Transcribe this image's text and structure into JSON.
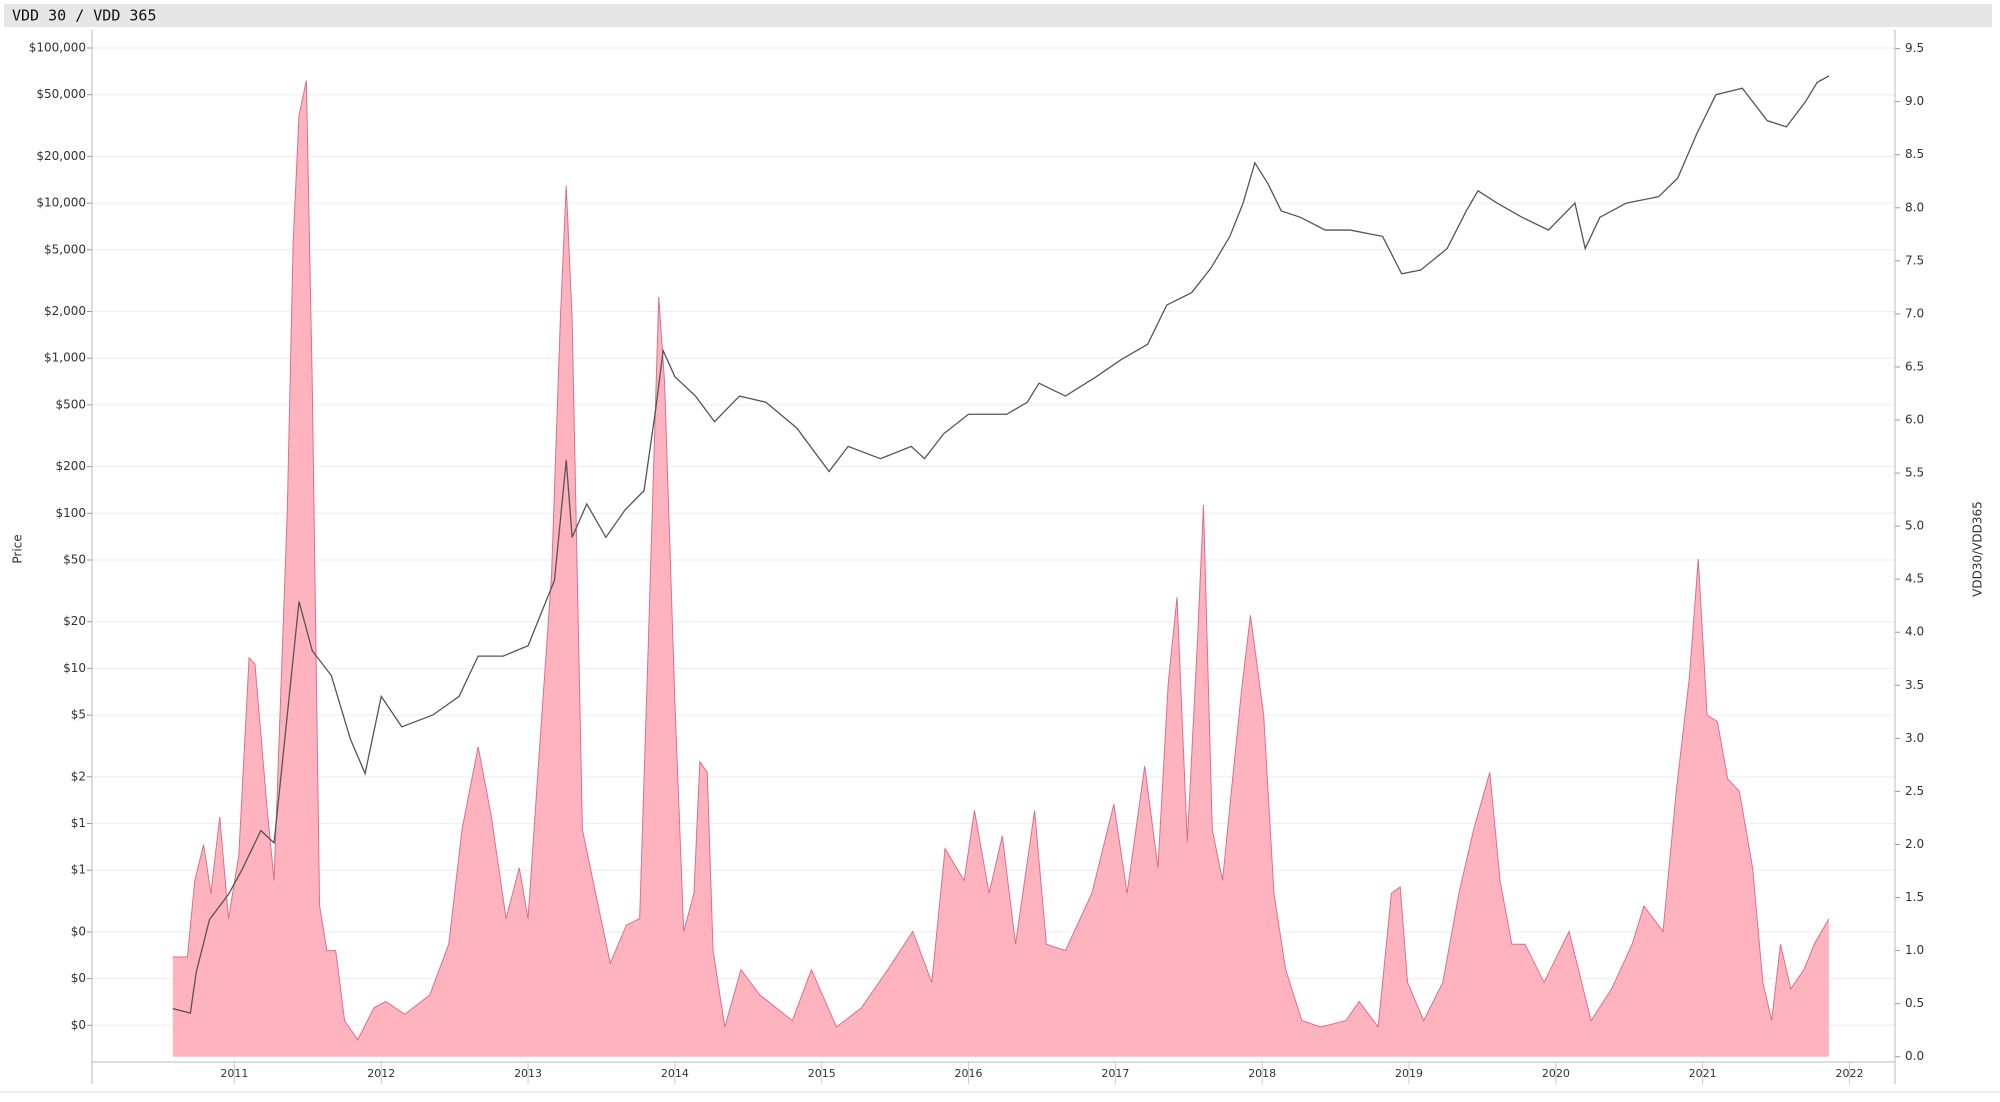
{
  "chart_data": {
    "type": "line",
    "title": "VDD 30 / VDD 365",
    "y_label": "Price",
    "y2_label": "VDD30/VDD365",
    "xlim": [
      2010.03,
      2022.31
    ],
    "xticks": [
      2011,
      2012,
      2013,
      2014,
      2015,
      2016,
      2017,
      2018,
      2019,
      2020,
      2021,
      2022
    ],
    "y_log": true,
    "ylim": [
      0.029,
      116000
    ],
    "yticks": [
      {
        "value": 100000,
        "label": "$100,000"
      },
      {
        "value": 50000,
        "label": "$50,000"
      },
      {
        "value": 20000,
        "label": "$20,000"
      },
      {
        "value": 10000,
        "label": "$10,000"
      },
      {
        "value": 5000,
        "label": "$5,000"
      },
      {
        "value": 2000,
        "label": "$2,000"
      },
      {
        "value": 1000,
        "label": "$1,000"
      },
      {
        "value": 500,
        "label": "$500"
      },
      {
        "value": 200,
        "label": "$200"
      },
      {
        "value": 100,
        "label": "$100"
      },
      {
        "value": 50,
        "label": "$50"
      },
      {
        "value": 20,
        "label": "$20"
      },
      {
        "value": 10,
        "label": "$10"
      },
      {
        "value": 5,
        "label": "$5"
      },
      {
        "value": 2,
        "label": "$2"
      },
      {
        "value": 1,
        "label": "$1"
      },
      {
        "value": 0.5,
        "label": "$1"
      },
      {
        "value": 0.2,
        "label": "$0"
      },
      {
        "value": 0.1,
        "label": "$0"
      },
      {
        "value": 0.05,
        "label": "$0"
      }
    ],
    "y2lim": [
      -0.05,
      9.6
    ],
    "y2ticks": [
      {
        "value": 0,
        "label": "0.0"
      },
      0.5,
      {
        "value": 1,
        "label": "1.0"
      },
      1.5,
      {
        "value": 2,
        "label": "2.0"
      },
      2.5,
      {
        "value": 3,
        "label": "3.0"
      },
      3.5,
      {
        "value": 4,
        "label": "4.0"
      },
      4.5,
      {
        "value": 5,
        "label": "5.0"
      },
      5.5,
      {
        "value": 6,
        "label": "6.0"
      },
      6.5,
      {
        "value": 7,
        "label": "7.0"
      },
      7.5,
      {
        "value": 8,
        "label": "8.0"
      },
      8.5,
      {
        "value": 9,
        "label": "9.0"
      },
      9.5
    ],
    "grid": true,
    "series": [
      {
        "type": "area",
        "axis": "y2",
        "color": "#ffb3bf",
        "line_color": "#d9708a",
        "x": [
          2010.58,
          2010.68,
          2010.73,
          2010.79,
          2010.84,
          2010.9,
          2010.96,
          2011.03,
          2011.1,
          2011.14,
          2011.22,
          2011.27,
          2011.36,
          2011.4,
          2011.44,
          2011.49,
          2011.53,
          2011.58,
          2011.63,
          2011.69,
          2011.75,
          2011.84,
          2011.95,
          2012.03,
          2012.16,
          2012.33,
          2012.46,
          2012.55,
          2012.66,
          2012.75,
          2012.85,
          2012.94,
          2013.0,
          2013.07,
          2013.16,
          2013.22,
          2013.26,
          2013.3,
          2013.37,
          2013.46,
          2013.56,
          2013.67,
          2013.76,
          2013.82,
          2013.89,
          2013.93,
          2014.0,
          2014.06,
          2014.13,
          2014.17,
          2014.22,
          2014.26,
          2014.34,
          2014.45,
          2014.58,
          2014.8,
          2014.93,
          2015.1,
          2015.27,
          2015.45,
          2015.62,
          2015.75,
          2015.84,
          2015.97,
          2016.04,
          2016.14,
          2016.23,
          2016.32,
          2016.45,
          2016.53,
          2016.66,
          2016.84,
          2016.99,
          2017.08,
          2017.2,
          2017.29,
          2017.36,
          2017.42,
          2017.49,
          2017.56,
          2017.6,
          2017.66,
          2017.73,
          2017.79,
          2017.86,
          2017.92,
          2018.01,
          2018.08,
          2018.16,
          2018.27,
          2018.4,
          2018.57,
          2018.66,
          2018.79,
          2018.88,
          2018.94,
          2018.99,
          2019.1,
          2019.23,
          2019.34,
          2019.44,
          2019.55,
          2019.62,
          2019.7,
          2019.79,
          2019.92,
          2020.09,
          2020.24,
          2020.38,
          2020.52,
          2020.6,
          2020.73,
          2020.82,
          2020.91,
          2020.97,
          2021.03,
          2021.1,
          2021.17,
          2021.25,
          2021.34,
          2021.41,
          2021.47,
          2021.53,
          2021.6,
          2021.69,
          2021.76,
          2021.86
        ],
        "values": [
          0.94,
          0.94,
          1.66,
          2.0,
          1.54,
          2.26,
          1.3,
          1.9,
          3.76,
          3.7,
          2.38,
          1.66,
          5.14,
          7.67,
          8.87,
          9.2,
          6.35,
          1.42,
          1.0,
          1.0,
          0.34,
          0.16,
          0.46,
          0.52,
          0.4,
          0.58,
          1.06,
          2.14,
          2.92,
          2.26,
          1.3,
          1.78,
          1.3,
          2.74,
          4.54,
          6.95,
          8.21,
          6.95,
          2.14,
          1.54,
          0.88,
          1.24,
          1.3,
          3.94,
          7.16,
          6.35,
          3.34,
          1.18,
          1.54,
          2.78,
          2.68,
          1.0,
          0.28,
          0.82,
          0.58,
          0.34,
          0.82,
          0.28,
          0.46,
          0.82,
          1.18,
          0.7,
          1.96,
          1.66,
          2.32,
          1.54,
          2.08,
          1.06,
          2.32,
          1.06,
          1.0,
          1.54,
          2.38,
          1.54,
          2.74,
          1.78,
          3.52,
          4.33,
          2.02,
          3.94,
          5.2,
          2.14,
          1.66,
          2.5,
          3.46,
          4.16,
          3.22,
          1.54,
          0.82,
          0.34,
          0.28,
          0.34,
          0.52,
          0.28,
          1.54,
          1.6,
          0.7,
          0.34,
          0.7,
          1.54,
          2.14,
          2.68,
          1.66,
          1.06,
          1.06,
          0.7,
          1.18,
          0.34,
          0.64,
          1.06,
          1.42,
          1.18,
          2.5,
          3.58,
          4.69,
          3.22,
          3.16,
          2.62,
          2.5,
          1.78,
          0.7,
          0.34,
          1.06,
          0.64,
          0.82,
          1.06,
          1.3
        ]
      },
      {
        "type": "line",
        "axis": "y",
        "color": "#555555",
        "x": [
          2010.58,
          2010.7,
          2010.74,
          2010.83,
          2010.96,
          2011.05,
          2011.18,
          2011.27,
          2011.36,
          2011.44,
          2011.53,
          2011.66,
          2011.79,
          2011.89,
          2012.0,
          2012.14,
          2012.35,
          2012.53,
          2012.66,
          2012.83,
          2013.0,
          2013.18,
          2013.26,
          2013.3,
          2013.4,
          2013.53,
          2013.66,
          2013.79,
          2013.87,
          2013.92,
          2014.0,
          2014.14,
          2014.27,
          2014.44,
          2014.62,
          2014.83,
          2015.05,
          2015.18,
          2015.4,
          2015.61,
          2015.7,
          2015.83,
          2016.0,
          2016.26,
          2016.4,
          2016.48,
          2016.66,
          2016.87,
          2017.04,
          2017.22,
          2017.35,
          2017.52,
          2017.65,
          2017.78,
          2017.87,
          2017.95,
          2018.04,
          2018.13,
          2018.26,
          2018.43,
          2018.6,
          2018.82,
          2018.95,
          2019.08,
          2019.26,
          2019.39,
          2019.47,
          2019.6,
          2019.77,
          2019.95,
          2020.13,
          2020.2,
          2020.3,
          2020.48,
          2020.7,
          2020.83,
          2020.96,
          2021.09,
          2021.27,
          2021.44,
          2021.57,
          2021.7,
          2021.78,
          2021.86
        ],
        "values": [
          0.064,
          0.06,
          0.11,
          0.24,
          0.35,
          0.5,
          0.9,
          0.75,
          5,
          27,
          13,
          9,
          3.5,
          2.1,
          6.6,
          4.2,
          5,
          6.6,
          12,
          12,
          14,
          37,
          220,
          70,
          115,
          70,
          105,
          140,
          475,
          1120,
          760,
          570,
          390,
          570,
          520,
          355,
          186,
          270,
          225,
          270,
          225,
          325,
          435,
          435,
          520,
          690,
          570,
          760,
          980,
          1230,
          2200,
          2650,
          3800,
          6100,
          10000,
          18200,
          13300,
          8900,
          8100,
          6700,
          6700,
          6100,
          3500,
          3700,
          5100,
          8900,
          12000,
          10000,
          8100,
          6700,
          10000,
          5100,
          8100,
          10000,
          11000,
          14500,
          28000,
          50000,
          55000,
          34000,
          31000,
          45000,
          60000,
          66000
        ]
      }
    ]
  }
}
